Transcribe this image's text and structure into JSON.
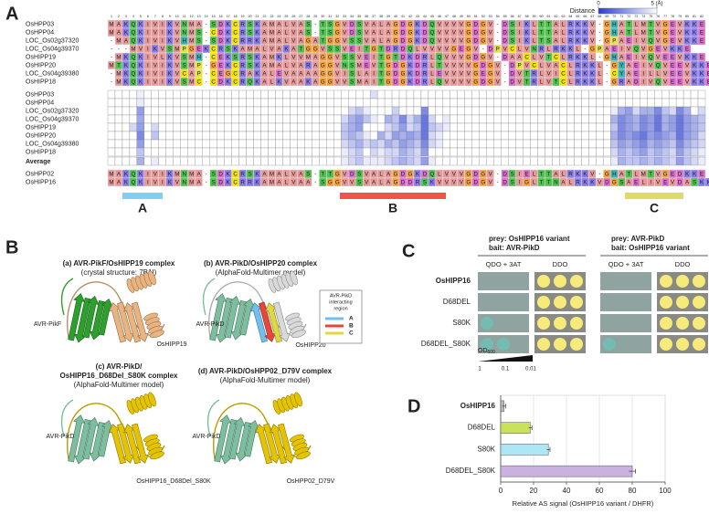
{
  "panel_a": {
    "label": "A",
    "column_numbers": [
      1,
      2,
      3,
      4,
      5,
      6,
      7,
      8,
      9,
      10,
      11,
      12,
      13,
      14,
      15,
      16,
      17,
      18,
      19,
      20,
      21,
      22,
      23,
      24,
      25,
      26,
      27,
      28,
      29,
      30,
      31,
      32,
      33,
      34,
      35,
      36,
      37,
      38,
      39,
      40,
      41,
      42,
      43,
      44,
      45,
      46,
      47,
      48,
      49,
      50,
      51,
      52,
      53,
      54,
      55,
      56,
      57,
      58,
      59,
      60,
      61,
      62,
      63,
      64,
      65,
      66,
      67,
      68,
      69,
      70,
      71,
      72,
      73,
      74,
      75,
      76,
      77,
      78,
      79,
      80,
      81,
      82
    ],
    "colorbar": {
      "label": "Distance",
      "range": [
        0,
        5
      ],
      "ticks": [
        0,
        {
          "value": 5,
          "label": "5 (Å)"
        }
      ]
    },
    "top_rows": [
      {
        "name": "OsHPP03",
        "sequence": "MAKQKIVIKVNMA-SDKCRSKAMALVAS-TSGVDSVALAGDGKDQVVVVGDGV-DSIKLTTALRKKV-GHATLMTVGEVKKE"
      },
      {
        "name": "OsHPP04",
        "sequence": "MAKQKIVIKVNMS-CDKCRSKAMALVAS-TSGVDSVALAGDGKDQVVVVGDGV-DSIKLTTALRKKV-GHATLMTVGEVKKE"
      },
      {
        "name": "LOC_Os02g37320",
        "sequence": "-MAQKIVIKVHMS-SDKCRRKAMALVAGATGGVSSVALAGDGKDQVVVVGDGV-DSIKLTSALRKKV-GPAEIVQVGEVKKE"
      },
      {
        "name": "LOC_Os04g39370",
        "sequence": "---MVIKVSMPGEKCRSKAMALVAKATGGVSSVEITGTDRDQLVVVVGEGV-DPVCLVNRLRKKL-GPAEIVQVGEVKKE"
      },
      {
        "name": "OsHIPP19",
        "sequence": "-MKQKIVLKVSMH-CEKSRSKAMKLVVMAGGVSSVEITGTDKDRLQVVVGDGV-DAACLVTCLRKKL-GHAEIVQVEEVKKE"
      },
      {
        "name": "OsHIPP20",
        "sequence": "MTKQKIVIKVSMP-GEKCRSKAMALVARAGGVNSMEVTGDGKDRLTVVVVGDGV-DPVCLVACLRKKL-GYAEIVQVEEVKKE"
      },
      {
        "name": "LOC_Os04g39380",
        "sequence": "-MKQKIVIKVCAP-CEGCRAKALEVAAAAGGVISLAITGDGKDRLEVVVVGEGV-DVTRLVICLRKKL-CYAEILLVEEVKKE"
      },
      {
        "name": "OsHIPP18",
        "sequence": "-MKQKIVIKVSMC-CDKCRQKALKVAAKAGGVVSMAITGDGKDRLQVVVVGDGV-DVTRLVTCLRKKL-GRADIVQVEEVKKE"
      }
    ],
    "heatmap": {
      "rows": [
        {
          "name": "OsHPP03",
          "values": [
            null,
            null,
            null,
            null,
            4.6,
            null,
            null,
            null,
            null,
            null,
            null,
            null,
            null,
            null,
            null,
            null,
            null,
            null,
            null,
            null,
            null,
            null,
            null,
            null,
            null,
            null,
            null,
            null,
            null,
            null,
            null,
            null,
            null,
            null,
            null,
            null,
            4.2,
            null,
            null,
            null,
            null,
            null,
            null,
            null,
            null,
            null,
            null,
            null,
            null,
            null,
            null,
            null,
            null,
            null,
            null,
            null,
            null,
            null,
            null,
            null,
            null,
            null,
            null,
            null,
            null,
            null,
            null,
            null,
            null,
            null,
            null,
            null,
            null,
            null,
            null,
            null,
            null,
            null,
            null,
            null,
            null,
            null
          ]
        },
        {
          "name": "OsHPP04",
          "values": [
            null,
            null,
            null,
            null,
            4.5,
            null,
            null,
            null,
            null,
            null,
            null,
            null,
            null,
            null,
            null,
            null,
            null,
            null,
            null,
            null,
            null,
            null,
            null,
            null,
            null,
            null,
            null,
            null,
            null,
            null,
            null,
            null,
            null,
            null,
            null,
            null,
            null,
            null,
            null,
            null,
            null,
            null,
            null,
            null,
            null,
            null,
            null,
            null,
            null,
            null,
            null,
            null,
            null,
            null,
            null,
            null,
            null,
            null,
            null,
            null,
            null,
            null,
            null,
            null,
            null,
            null,
            null,
            null,
            null,
            null,
            null,
            null,
            null,
            null,
            null,
            null,
            null,
            null,
            null,
            null,
            null,
            null
          ]
        },
        {
          "name": "LOC_Os02g37320",
          "values": [
            null,
            null,
            null,
            null,
            2.5,
            null,
            null,
            null,
            null,
            null,
            null,
            null,
            null,
            null,
            null,
            null,
            null,
            null,
            null,
            null,
            null,
            null,
            null,
            null,
            null,
            null,
            null,
            null,
            null,
            null,
            null,
            null,
            null,
            4,
            3.5,
            4.5,
            null,
            null,
            null,
            3.8,
            null,
            null,
            null,
            2,
            null,
            null,
            null,
            null,
            null,
            null,
            null,
            null,
            null,
            null,
            null,
            null,
            null,
            null,
            null,
            null,
            null,
            null,
            null,
            null,
            null,
            null,
            null,
            null,
            null,
            4.5,
            3,
            2.5,
            4,
            3,
            3,
            2,
            3.5,
            4,
            2,
            3,
            null,
            4
          ]
        },
        {
          "name": "LOC_Os04g39370",
          "values": [
            null,
            null,
            null,
            null,
            2.8,
            null,
            null,
            null,
            null,
            null,
            null,
            null,
            null,
            null,
            null,
            null,
            null,
            null,
            null,
            null,
            null,
            null,
            null,
            null,
            null,
            null,
            null,
            null,
            null,
            null,
            null,
            null,
            4,
            3,
            2.5,
            3.5,
            4.5,
            null,
            3,
            3.5,
            2,
            4,
            3,
            1.5,
            4,
            null,
            4.5,
            null,
            null,
            null,
            null,
            null,
            null,
            null,
            null,
            null,
            null,
            null,
            null,
            null,
            null,
            null,
            null,
            null,
            null,
            null,
            null,
            null,
            null,
            3,
            2,
            2.5,
            3,
            2,
            2.5,
            1.5,
            3,
            2.5,
            1.5,
            2.5,
            3,
            3.5
          ]
        },
        {
          "name": "OsHIPP19",
          "values": [
            null,
            null,
            null,
            4,
            2.5,
            null,
            4,
            null,
            null,
            null,
            null,
            null,
            null,
            null,
            null,
            null,
            null,
            null,
            null,
            null,
            null,
            null,
            null,
            null,
            null,
            null,
            null,
            null,
            null,
            null,
            null,
            null,
            3.5,
            3,
            2.5,
            null,
            null,
            null,
            4,
            3.5,
            2.5,
            4,
            3.5,
            1.5,
            3.5,
            4,
            4.5,
            null,
            null,
            null,
            null,
            null,
            null,
            null,
            null,
            null,
            null,
            null,
            null,
            null,
            null,
            null,
            null,
            null,
            null,
            null,
            null,
            null,
            null,
            3.5,
            2,
            2.5,
            3,
            2,
            2.5,
            1.5,
            3,
            2.5,
            1.5,
            2.5,
            3,
            3.5
          ]
        },
        {
          "name": "OsHIPP20",
          "values": [
            null,
            null,
            null,
            null,
            2,
            null,
            3.5,
            null,
            null,
            null,
            null,
            null,
            null,
            null,
            null,
            null,
            null,
            null,
            null,
            null,
            null,
            null,
            null,
            null,
            null,
            null,
            null,
            null,
            null,
            null,
            null,
            null,
            3.5,
            3,
            3.5,
            4.5,
            null,
            3,
            4,
            2.5,
            3,
            2.5,
            3,
            1.5,
            4,
            4.5,
            null,
            null,
            null,
            null,
            null,
            null,
            null,
            null,
            null,
            null,
            null,
            null,
            null,
            null,
            null,
            null,
            null,
            null,
            null,
            null,
            null,
            null,
            null,
            3,
            2,
            2.5,
            2,
            1.5,
            2.5,
            2,
            2.5,
            3,
            1.5,
            2.5,
            3,
            4
          ]
        },
        {
          "name": "LOC_Os04g39380",
          "values": [
            null,
            null,
            null,
            null,
            2.5,
            null,
            null,
            null,
            null,
            null,
            null,
            null,
            null,
            null,
            null,
            null,
            null,
            null,
            null,
            null,
            null,
            null,
            null,
            null,
            null,
            null,
            null,
            null,
            null,
            null,
            null,
            null,
            4,
            3.5,
            3,
            4,
            3.5,
            4,
            3,
            3.5,
            2.5,
            3,
            3.5,
            2,
            4,
            4.5,
            null,
            null,
            null,
            null,
            null,
            null,
            null,
            null,
            null,
            null,
            null,
            null,
            null,
            null,
            null,
            null,
            null,
            null,
            null,
            null,
            null,
            null,
            null,
            3.5,
            2.5,
            3,
            2.5,
            2,
            3,
            2.5,
            3,
            3.5,
            2,
            3,
            3.5,
            4
          ]
        },
        {
          "name": "OsHIPP18",
          "values": [
            null,
            null,
            null,
            null,
            3.5,
            null,
            null,
            null,
            null,
            null,
            null,
            null,
            null,
            null,
            null,
            null,
            null,
            null,
            null,
            null,
            null,
            null,
            null,
            null,
            null,
            null,
            null,
            null,
            null,
            null,
            null,
            null,
            4.5,
            4,
            3.5,
            null,
            4,
            4.5,
            4,
            4,
            3,
            3.5,
            4,
            2.5,
            null,
            null,
            null,
            null,
            null,
            null,
            null,
            null,
            null,
            null,
            null,
            null,
            null,
            null,
            null,
            null,
            null,
            null,
            null,
            null,
            null,
            null,
            null,
            null,
            null,
            4,
            3,
            3.5,
            3,
            2.5,
            3.5,
            3,
            3.5,
            4,
            2.5,
            3.5,
            4,
            4.5
          ]
        }
      ]
    },
    "average": {
      "name": "Average",
      "values": [
        null,
        null,
        null,
        null,
        3,
        null,
        4.5,
        null,
        null,
        null,
        null,
        null,
        null,
        null,
        null,
        null,
        null,
        null,
        null,
        null,
        null,
        null,
        null,
        null,
        null,
        null,
        null,
        null,
        null,
        null,
        null,
        null,
        4.5,
        4,
        3.5,
        4.5,
        4.5,
        4.5,
        4,
        3.5,
        3,
        3.5,
        4,
        2.5,
        4.5,
        null,
        null,
        null,
        null,
        null,
        null,
        null,
        null,
        null,
        null,
        null,
        null,
        null,
        null,
        null,
        null,
        null,
        null,
        null,
        null,
        null,
        null,
        null,
        null,
        4.5,
        3,
        3.5,
        3.5,
        3,
        3.5,
        3,
        3.5,
        4,
        2.5,
        3.5,
        4,
        4.5
      ]
    },
    "bottom_rows": [
      {
        "name": "OsHPP02",
        "sequence": "MAKQKIVIKMNMA-SDKCRSKAMALVAS-TTGVDSVALAGDGKDQLVVVGDGV-DSIELTTALRKKV-GHATLMTVGEDKKE"
      },
      {
        "name": "OsHIPP16",
        "sequence": "MAKQKIVIKVNMA-SDKCRRKAMALVAA-SGGVVSVALAGDDRSKVVVVGDGV-DSIGLTTNALRKKVDGSAELIVEVDASKK"
      }
    ],
    "regions": [
      "A",
      "B",
      "C"
    ]
  },
  "panel_b": {
    "label": "B",
    "structures": [
      {
        "title_lines": [
          "(a) AVR-PikF/OsHIPP19 complex",
          "(crystal structure: 7B1I)"
        ],
        "effector_label": "AVR-PikF",
        "partner_label": "OsHIPP19"
      },
      {
        "title_lines": [
          "(b) AVR-PikD/OsHIPP20 complex",
          "(AlphaFold-Multimer model)"
        ],
        "effector_label": "AVR-PikD",
        "partner_label": "OsHIPP20"
      },
      {
        "title_lines": [
          "(c) AVR-PikD/",
          "OsHIPP16_D68Del_S80K complex",
          "(AlphaFold-Multimer model)"
        ],
        "effector_label": "AVR-PikD",
        "partner_label": "OsHIPP16_D68Del_S80K"
      },
      {
        "title_lines": [
          "(d) AVR-PikD/OsHPP02_D79V complex",
          "(AlphaFold-Multimer model)"
        ],
        "effector_label": "AVR-PikD",
        "partner_label": "OsHPP02_D79V"
      }
    ],
    "legend": {
      "title_lines": [
        "AVR-PikD",
        "interacting",
        "region"
      ],
      "items": [
        "A",
        "B",
        "C"
      ]
    }
  },
  "panel_c": {
    "label": "C",
    "groups": [
      {
        "prey": "prey: OsHIPP16 variant",
        "bait": "bait: AVR-PikD"
      },
      {
        "prey": "prey: AVR-PikD",
        "bait": "bait: OsHIPP16 variant"
      }
    ],
    "media": [
      "QDO + 3AT",
      "DDO",
      "QDO + 3AT",
      "DDO"
    ],
    "rows": [
      "OsHIPP16",
      "D68DEL",
      "S80K",
      "D68DEL_S80K"
    ],
    "od": {
      "label": "OD",
      "subscript": "600",
      "ticks": [
        1,
        0.1,
        0.01
      ]
    }
  },
  "panel_d": {
    "label": "D"
  },
  "chart_data": {
    "type": "bar",
    "orientation": "horizontal",
    "categories": [
      "OsHIPP16",
      "D68DEL",
      "S80K",
      "D68DEL_S80K"
    ],
    "values": [
      2,
      18,
      29,
      80
    ],
    "errors": [
      1,
      1,
      1,
      2
    ],
    "colors": [
      "#b8b8b8",
      "#c8e35a",
      "#ade6f4",
      "#c9b2df"
    ],
    "xlim": [
      0,
      100
    ],
    "xticks": [
      0,
      20,
      40,
      60,
      80,
      100
    ],
    "xlabel": "Relative AS signal (OsHIPP16 variant / DHFR)",
    "grid": true
  }
}
